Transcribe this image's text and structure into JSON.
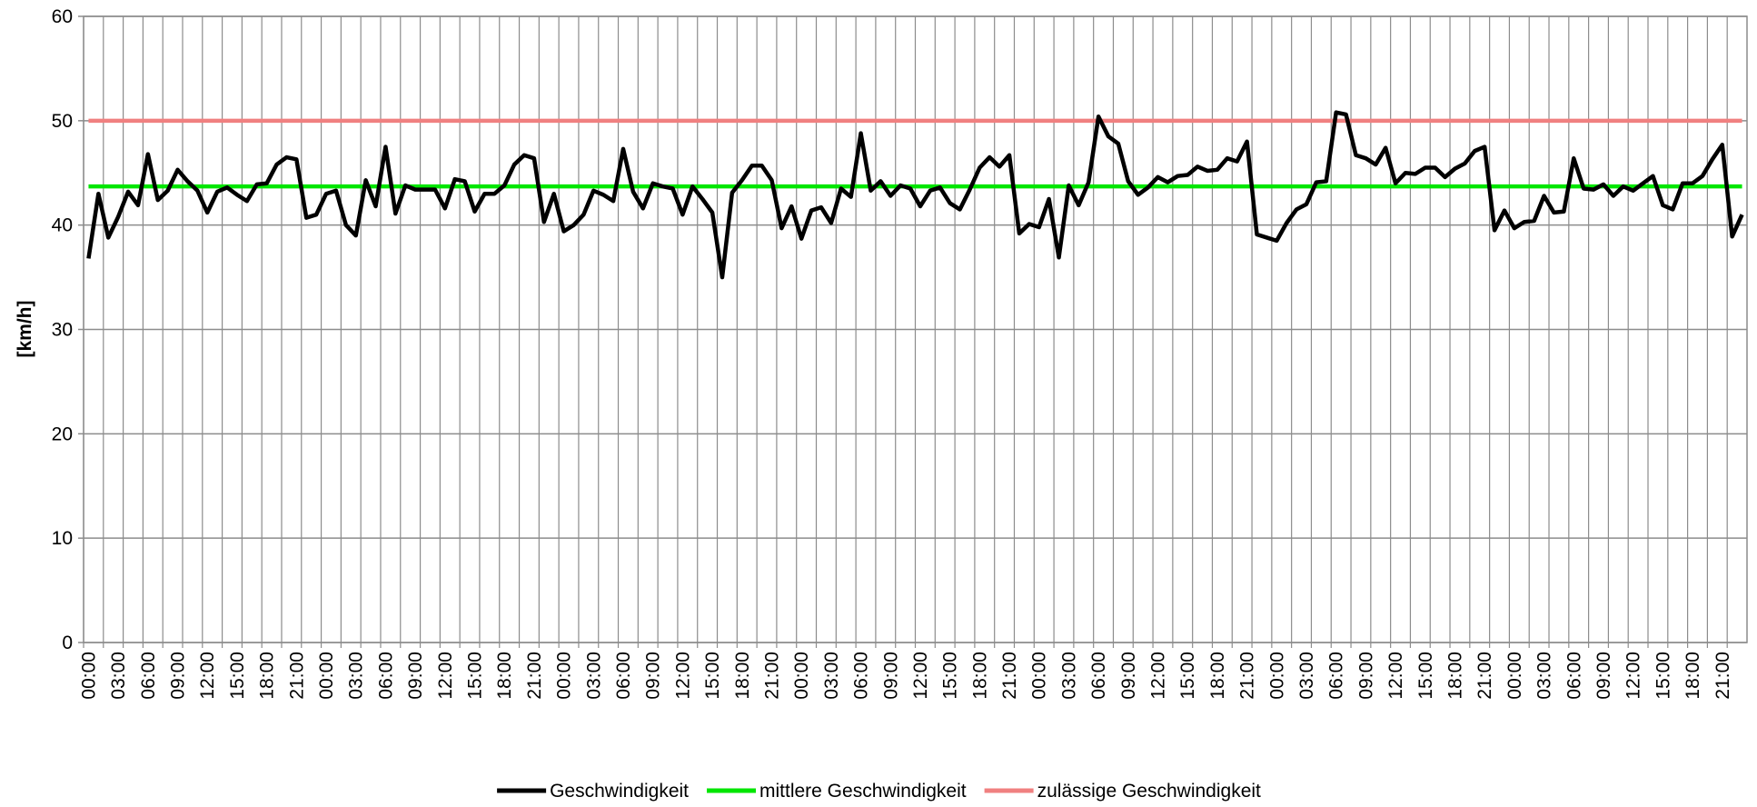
{
  "chart_data": {
    "type": "line",
    "y_label": "[km/h]",
    "categories": [
      "00:00",
      null,
      null,
      "03:00",
      null,
      null,
      "06:00",
      null,
      null,
      "09:00",
      null,
      null,
      "12:00",
      null,
      null,
      "15:00",
      null,
      null,
      "18:00",
      null,
      null,
      "21:00",
      null,
      null,
      "00:00",
      null,
      null,
      "03:00",
      null,
      null,
      "06:00",
      null,
      null,
      "09:00",
      null,
      null,
      "12:00",
      null,
      null,
      "15:00",
      null,
      null,
      "18:00",
      null,
      null,
      "21:00",
      null,
      null,
      "00:00",
      null,
      null,
      "03:00",
      null,
      null,
      "06:00",
      null,
      null,
      "09:00",
      null,
      null,
      "12:00",
      null,
      null,
      "15:00",
      null,
      null,
      "18:00",
      null,
      null,
      "21:00",
      null,
      null,
      "00:00",
      null,
      null,
      "03:00",
      null,
      null,
      "06:00",
      null,
      null,
      "09:00",
      null,
      null,
      "12:00",
      null,
      null,
      "15:00",
      null,
      null,
      "18:00",
      null,
      null,
      "21:00",
      null,
      null,
      "00:00",
      null,
      null,
      "03:00",
      null,
      null,
      "06:00",
      null,
      null,
      "09:00",
      null,
      null,
      "12:00",
      null,
      null,
      "15:00",
      null,
      null,
      "18:00",
      null,
      null,
      "21:00",
      null,
      null,
      "00:00",
      null,
      null,
      "03:00",
      null,
      null,
      "06:00",
      null,
      null,
      "09:00",
      null,
      null,
      "12:00",
      null,
      null,
      "15:00",
      null,
      null,
      "18:00",
      null,
      null,
      "21:00",
      null,
      null,
      "00:00",
      null,
      null,
      "03:00",
      null,
      null,
      "06:00",
      null,
      null,
      "09:00",
      null,
      null,
      "12:00",
      null,
      null,
      "15:00",
      null,
      null,
      "18:00",
      null,
      null,
      "21:00",
      null,
      null
    ],
    "series": [
      {
        "name": "Geschwindigkeit",
        "color": "#000000",
        "values": [
          36.8,
          43,
          38.8,
          40.8,
          43.2,
          41.9,
          46.8,
          42.4,
          43.3,
          45.3,
          44.2,
          43.3,
          41.2,
          43.2,
          43.6,
          42.9,
          42.3,
          43.9,
          44.0,
          45.8,
          46.5,
          46.3,
          40.7,
          41.0,
          43.0,
          43.3,
          40.0,
          39.0,
          44.3,
          41.8,
          47.5,
          41.1,
          43.8,
          43.4,
          43.4,
          43.4,
          41.6,
          44.4,
          44.2,
          41.3,
          43.0,
          43.0,
          43.8,
          45.8,
          46.7,
          46.4,
          40.3,
          43.0,
          39.4,
          40.0,
          41.0,
          43.3,
          42.9,
          42.3,
          47.3,
          43.2,
          41.6,
          44.0,
          43.7,
          43.5,
          41.0,
          43.7,
          42.5,
          41.2,
          35.0,
          43.1,
          44.3,
          45.7,
          45.7,
          44.3,
          39.7,
          41.8,
          38.7,
          41.4,
          41.7,
          40.2,
          43.5,
          42.7,
          48.8,
          43.3,
          44.2,
          42.8,
          43.8,
          43.5,
          41.8,
          43.3,
          43.6,
          42.1,
          41.5,
          43.4,
          45.5,
          46.5,
          45.6,
          46.7,
          39.2,
          40.1,
          39.8,
          42.5,
          36.9,
          43.8,
          41.9,
          44.1,
          50.4,
          48.5,
          47.8,
          44.2,
          42.9,
          43.6,
          44.6,
          44.1,
          44.7,
          44.8,
          45.6,
          45.2,
          45.3,
          46.4,
          46.1,
          48.0,
          39.1,
          38.8,
          38.5,
          40.2,
          41.5,
          42.0,
          44.1,
          44.2,
          50.8,
          50.6,
          46.7,
          46.4,
          45.8,
          47.4,
          44.0,
          45.0,
          44.9,
          45.5,
          45.5,
          44.6,
          45.4,
          45.9,
          47.1,
          47.5,
          39.5,
          41.4,
          39.7,
          40.3,
          40.4,
          42.8,
          41.2,
          41.3,
          46.4,
          43.5,
          43.4,
          43.9,
          42.8,
          43.7,
          43.3,
          44.0,
          44.7,
          41.9,
          41.5,
          44.0,
          44.0,
          44.7,
          46.3,
          47.7,
          38.9,
          41.0
        ]
      },
      {
        "name": "mittlere Geschwindigkeit",
        "color": "#00e600",
        "values": [
          43.7,
          43.7,
          43.7,
          43.7,
          43.7,
          43.7,
          43.7,
          43.7,
          43.7,
          43.7,
          43.7,
          43.7,
          43.7,
          43.7,
          43.7,
          43.7,
          43.7,
          43.7,
          43.7,
          43.7,
          43.7,
          43.7,
          43.7,
          43.7,
          43.7,
          43.7,
          43.7,
          43.7,
          43.7,
          43.7,
          43.7,
          43.7,
          43.7,
          43.7,
          43.7,
          43.7,
          43.7,
          43.7,
          43.7,
          43.7,
          43.7,
          43.7,
          43.7,
          43.7,
          43.7,
          43.7,
          43.7,
          43.7,
          43.7,
          43.7,
          43.7,
          43.7,
          43.7,
          43.7,
          43.7,
          43.7,
          43.7,
          43.7,
          43.7,
          43.7,
          43.7,
          43.7,
          43.7,
          43.7,
          43.7,
          43.7,
          43.7,
          43.7,
          43.7,
          43.7,
          43.7,
          43.7,
          43.7,
          43.7,
          43.7,
          43.7,
          43.7,
          43.7,
          43.7,
          43.7,
          43.7,
          43.7,
          43.7,
          43.7,
          43.7,
          43.7,
          43.7,
          43.7,
          43.7,
          43.7,
          43.7,
          43.7,
          43.7,
          43.7,
          43.7,
          43.7,
          43.7,
          43.7,
          43.7,
          43.7,
          43.7,
          43.7,
          43.7,
          43.7,
          43.7,
          43.7,
          43.7,
          43.7,
          43.7,
          43.7,
          43.7,
          43.7,
          43.7,
          43.7,
          43.7,
          43.7,
          43.7,
          43.7,
          43.7,
          43.7,
          43.7,
          43.7,
          43.7,
          43.7,
          43.7,
          43.7,
          43.7,
          43.7,
          43.7,
          43.7,
          43.7,
          43.7,
          43.7,
          43.7,
          43.7,
          43.7,
          43.7,
          43.7,
          43.7,
          43.7,
          43.7,
          43.7,
          43.7,
          43.7,
          43.7,
          43.7,
          43.7,
          43.7,
          43.7,
          43.7,
          43.7,
          43.7,
          43.7,
          43.7,
          43.7,
          43.7,
          43.7,
          43.7,
          43.7,
          43.7,
          43.7,
          43.7,
          43.7,
          43.7,
          43.7,
          43.7,
          43.7,
          43.7
        ]
      },
      {
        "name": "zulässige Geschwindigkeit",
        "color": "#f08080",
        "values": [
          50,
          50,
          50,
          50,
          50,
          50,
          50,
          50,
          50,
          50,
          50,
          50,
          50,
          50,
          50,
          50,
          50,
          50,
          50,
          50,
          50,
          50,
          50,
          50,
          50,
          50,
          50,
          50,
          50,
          50,
          50,
          50,
          50,
          50,
          50,
          50,
          50,
          50,
          50,
          50,
          50,
          50,
          50,
          50,
          50,
          50,
          50,
          50,
          50,
          50,
          50,
          50,
          50,
          50,
          50,
          50,
          50,
          50,
          50,
          50,
          50,
          50,
          50,
          50,
          50,
          50,
          50,
          50,
          50,
          50,
          50,
          50,
          50,
          50,
          50,
          50,
          50,
          50,
          50,
          50,
          50,
          50,
          50,
          50,
          50,
          50,
          50,
          50,
          50,
          50,
          50,
          50,
          50,
          50,
          50,
          50,
          50,
          50,
          50,
          50,
          50,
          50,
          50,
          50,
          50,
          50,
          50,
          50,
          50,
          50,
          50,
          50,
          50,
          50,
          50,
          50,
          50,
          50,
          50,
          50,
          50,
          50,
          50,
          50,
          50,
          50,
          50,
          50,
          50,
          50,
          50,
          50,
          50,
          50,
          50,
          50,
          50,
          50,
          50,
          50,
          50,
          50,
          50,
          50,
          50,
          50,
          50,
          50,
          50,
          50,
          50,
          50,
          50,
          50,
          50,
          50,
          50,
          50,
          50,
          50,
          50,
          50,
          50,
          50,
          50,
          50,
          50,
          50
        ]
      }
    ],
    "ylim": [
      0,
      60
    ],
    "yticks": [
      0,
      10,
      20,
      30,
      40,
      50,
      60
    ],
    "grid": true,
    "legend": "bottom"
  }
}
